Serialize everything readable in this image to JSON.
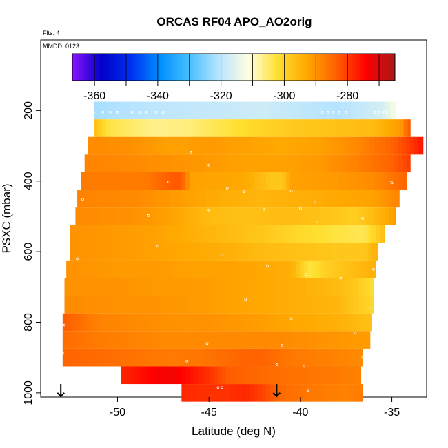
{
  "chart_data": {
    "type": "heatmap",
    "title": "ORCAS RF04 APO_AO2orig",
    "annotations": {
      "flights": "Flts: 4",
      "date": "MMDD: 0123"
    },
    "xlabel": "Latitude (deg N)",
    "ylabel": "PSXC (mbar)",
    "xlim": [
      -54.2,
      -33.1
    ],
    "ylim": [
      1012,
      0
    ],
    "x_ticks": [
      -50,
      -45,
      -40,
      -35
    ],
    "x_tick_labels": [
      "-50",
      "-45",
      "-40",
      "-35"
    ],
    "y_ticks": [
      200,
      400,
      600,
      800,
      1000
    ],
    "y_tick_labels": [
      "200",
      "400",
      "600",
      "800",
      "1000"
    ],
    "colorbar": {
      "range": [
        -367,
        -265
      ],
      "ticks": [
        -360,
        -340,
        -320,
        -300,
        -280
      ],
      "tick_labels": [
        "-360",
        "-340",
        "-320",
        "-300",
        "-280"
      ],
      "colors": [
        "#8a14ff",
        "#0000c8",
        "#0030f0",
        "#0090ff",
        "#48c0ff",
        "#b8e4ff",
        "#ffffe0",
        "#ffe030",
        "#ffa800",
        "#ff6000",
        "#ff0000",
        "#a81818"
      ]
    },
    "bands": [
      {
        "pressure": 200,
        "lat_min": -51.3,
        "lat_max": -34.8,
        "profile": [
          [
            -51.3,
            -322
          ],
          [
            -48,
            -320
          ],
          [
            -45,
            -319
          ],
          [
            -42,
            -318
          ],
          [
            -38,
            -321
          ],
          [
            -35.5,
            -317
          ],
          [
            -34.8,
            -312
          ]
        ]
      },
      {
        "pressure": 250,
        "lat_min": -51.3,
        "lat_max": -34.0,
        "profile": [
          [
            -51.3,
            -296
          ],
          [
            -50.5,
            -303
          ],
          [
            -48,
            -307
          ],
          [
            -46,
            -306
          ],
          [
            -44,
            -303
          ],
          [
            -42,
            -300
          ],
          [
            -40,
            -298
          ],
          [
            -38,
            -297
          ],
          [
            -36,
            -296
          ],
          [
            -34.5,
            -291
          ],
          [
            -34.0,
            -282
          ]
        ]
      },
      {
        "pressure": 300,
        "lat_min": -51.6,
        "lat_max": -33.3,
        "profile": [
          [
            -51.6,
            -289
          ],
          [
            -49,
            -290
          ],
          [
            -47,
            -292
          ],
          [
            -45,
            -291
          ],
          [
            -43,
            -292
          ],
          [
            -41,
            -293
          ],
          [
            -39,
            -292
          ],
          [
            -37,
            -289
          ],
          [
            -35,
            -284
          ],
          [
            -33.8,
            -279
          ],
          [
            -33.3,
            -276
          ]
        ]
      },
      {
        "pressure": 350,
        "lat_min": -51.8,
        "lat_max": -34.0,
        "profile": [
          [
            -51.8,
            -288
          ],
          [
            -49,
            -289
          ],
          [
            -47,
            -290
          ],
          [
            -45,
            -291
          ],
          [
            -43,
            -292
          ],
          [
            -41,
            -292
          ],
          [
            -39,
            -291
          ],
          [
            -37,
            -288
          ],
          [
            -35,
            -284
          ],
          [
            -34.0,
            -280
          ]
        ]
      },
      {
        "pressure": 400,
        "lat_min": -52.0,
        "lat_max": -34.2,
        "profile": [
          [
            -52.0,
            -287
          ],
          [
            -48.5,
            -287
          ],
          [
            -47,
            -283
          ],
          [
            -46.5,
            -283
          ],
          [
            -46,
            -292
          ],
          [
            -43,
            -293
          ],
          [
            -41.5,
            -298
          ],
          [
            -41,
            -298
          ],
          [
            -40.5,
            -292
          ],
          [
            -38,
            -291
          ],
          [
            -36,
            -289
          ],
          [
            -34.2,
            -284
          ]
        ]
      },
      {
        "pressure": 450,
        "lat_min": -52.2,
        "lat_max": -34.6,
        "profile": [
          [
            -52.2,
            -288
          ],
          [
            -49,
            -289
          ],
          [
            -46,
            -292
          ],
          [
            -44,
            -294
          ],
          [
            -42,
            -295
          ],
          [
            -40,
            -294
          ],
          [
            -38,
            -293
          ],
          [
            -36,
            -292
          ],
          [
            -34.6,
            -288
          ]
        ]
      },
      {
        "pressure": 500,
        "lat_min": -52.3,
        "lat_max": -34.8,
        "profile": [
          [
            -52.3,
            -289
          ],
          [
            -49,
            -290
          ],
          [
            -47,
            -292
          ],
          [
            -45,
            -296
          ],
          [
            -43,
            -297
          ],
          [
            -41,
            -296
          ],
          [
            -39,
            -297
          ],
          [
            -37,
            -299
          ],
          [
            -35.5,
            -294
          ],
          [
            -34.8,
            -291
          ]
        ]
      },
      {
        "pressure": 550,
        "lat_min": -52.6,
        "lat_max": -35.4,
        "profile": [
          [
            -52.6,
            -290
          ],
          [
            -50,
            -291
          ],
          [
            -48,
            -292
          ],
          [
            -46,
            -294
          ],
          [
            -44,
            -296
          ],
          [
            -42,
            -298
          ],
          [
            -40,
            -301
          ],
          [
            -38,
            -303
          ],
          [
            -36.5,
            -304
          ],
          [
            -35.4,
            -296
          ]
        ]
      },
      {
        "pressure": 600,
        "lat_min": -52.6,
        "lat_max": -35.8,
        "profile": [
          [
            -52.6,
            -290
          ],
          [
            -50,
            -291
          ],
          [
            -48,
            -292
          ],
          [
            -46,
            -293
          ],
          [
            -44,
            -294
          ],
          [
            -42,
            -296
          ],
          [
            -40,
            -297
          ],
          [
            -38,
            -298
          ],
          [
            -36.5,
            -298
          ],
          [
            -35.8,
            -294
          ]
        ]
      },
      {
        "pressure": 650,
        "lat_min": -52.8,
        "lat_max": -35.9,
        "profile": [
          [
            -52.8,
            -290
          ],
          [
            -50,
            -291
          ],
          [
            -48,
            -291
          ],
          [
            -46,
            -292
          ],
          [
            -44,
            -292
          ],
          [
            -42,
            -293
          ],
          [
            -40.5,
            -294
          ],
          [
            -39.5,
            -303
          ],
          [
            -38.5,
            -299
          ],
          [
            -37,
            -296
          ],
          [
            -35.9,
            -294
          ]
        ]
      },
      {
        "pressure": 700,
        "lat_min": -52.9,
        "lat_max": -36.0,
        "profile": [
          [
            -52.9,
            -290
          ],
          [
            -50,
            -290
          ],
          [
            -48,
            -291
          ],
          [
            -46,
            -291
          ],
          [
            -44,
            -292
          ],
          [
            -42,
            -293
          ],
          [
            -40,
            -294
          ],
          [
            -38,
            -296
          ],
          [
            -37,
            -298
          ],
          [
            -36.0,
            -302
          ]
        ]
      },
      {
        "pressure": 750,
        "lat_min": -52.9,
        "lat_max": -36.0,
        "profile": [
          [
            -52.9,
            -289
          ],
          [
            -50,
            -290
          ],
          [
            -48,
            -290
          ],
          [
            -46,
            -291
          ],
          [
            -44,
            -292
          ],
          [
            -42,
            -293
          ],
          [
            -40,
            -294
          ],
          [
            -38,
            -295
          ],
          [
            -37,
            -298
          ],
          [
            -36.0,
            -301
          ]
        ]
      },
      {
        "pressure": 800,
        "lat_min": -53.0,
        "lat_max": -36.1,
        "profile": [
          [
            -53.0,
            -283
          ],
          [
            -51,
            -288
          ],
          [
            -49,
            -289
          ],
          [
            -47,
            -290
          ],
          [
            -45,
            -290
          ],
          [
            -43,
            -291
          ],
          [
            -41.5,
            -292
          ],
          [
            -40,
            -293
          ],
          [
            -38,
            -294
          ],
          [
            -36.1,
            -297
          ]
        ]
      },
      {
        "pressure": 850,
        "lat_min": -53.0,
        "lat_max": -36.2,
        "profile": [
          [
            -53.0,
            -285
          ],
          [
            -51,
            -287
          ],
          [
            -49,
            -288
          ],
          [
            -47,
            -289
          ],
          [
            -45,
            -289
          ],
          [
            -43,
            -289
          ],
          [
            -41,
            -289
          ],
          [
            -39,
            -290
          ],
          [
            -37,
            -291
          ],
          [
            -36.2,
            -291
          ]
        ]
      },
      {
        "pressure": 900,
        "lat_min": -53.0,
        "lat_max": -36.6,
        "profile": [
          [
            -53.0,
            -284
          ],
          [
            -51,
            -285
          ],
          [
            -49,
            -286
          ],
          [
            -47,
            -287
          ],
          [
            -45,
            -286
          ],
          [
            -44,
            -285
          ],
          [
            -43,
            -284
          ],
          [
            -42,
            -284
          ],
          [
            -41,
            -286
          ],
          [
            -40,
            -287
          ],
          [
            -38,
            -288
          ],
          [
            -36.6,
            -289
          ]
        ]
      },
      {
        "pressure": 950,
        "lat_min": -49.8,
        "lat_max": -36.7,
        "profile": [
          [
            -49.8,
            -278
          ],
          [
            -48,
            -274
          ],
          [
            -47,
            -273
          ],
          [
            -46,
            -276
          ],
          [
            -45,
            -279
          ],
          [
            -44,
            -283
          ],
          [
            -42,
            -285
          ],
          [
            -40,
            -286
          ],
          [
            -38,
            -287
          ],
          [
            -36.7,
            -288
          ]
        ]
      },
      {
        "pressure": 1000,
        "lat_min": -46.5,
        "lat_max": -36.6,
        "profile": [
          [
            -46.5,
            -278
          ],
          [
            -45,
            -279
          ],
          [
            -44,
            -279
          ],
          [
            -43,
            -278
          ],
          [
            -42,
            -281
          ],
          [
            -41,
            -285
          ],
          [
            -39,
            -287
          ],
          [
            -37.5,
            -288
          ],
          [
            -36.6,
            -287
          ]
        ]
      }
    ],
    "flight_track": [
      [
        -51.3,
        205
      ],
      [
        -50.8,
        205
      ],
      [
        -50.4,
        205
      ],
      [
        -50.0,
        205
      ],
      [
        -49.2,
        205
      ],
      [
        -48.8,
        205
      ],
      [
        -48.4,
        205
      ],
      [
        -47.9,
        205
      ],
      [
        -47.5,
        205
      ],
      [
        -38.8,
        205
      ],
      [
        -38.5,
        205
      ],
      [
        -38.2,
        205
      ],
      [
        -37.9,
        205
      ],
      [
        -37.5,
        205
      ],
      [
        -35.9,
        205
      ],
      [
        -35.7,
        205
      ],
      [
        -35.5,
        205
      ],
      [
        -35.3,
        205
      ],
      [
        -46.0,
        318
      ],
      [
        -45.0,
        355
      ],
      [
        -47.2,
        403
      ],
      [
        -44.0,
        420
      ],
      [
        -43.1,
        430
      ],
      [
        -39.2,
        460
      ],
      [
        -35.1,
        403
      ],
      [
        -35.0,
        405
      ],
      [
        -40.5,
        428
      ],
      [
        -48.3,
        498
      ],
      [
        -45.0,
        482
      ],
      [
        -42.0,
        480
      ],
      [
        -40.0,
        478
      ],
      [
        -36.6,
        506
      ],
      [
        -51.9,
        452
      ],
      [
        -39.1,
        515
      ],
      [
        -35.0,
        560
      ],
      [
        -52.2,
        620
      ],
      [
        -47.8,
        585
      ],
      [
        -44.3,
        610
      ],
      [
        -41.8,
        640
      ],
      [
        -39.7,
        665
      ],
      [
        -37.8,
        675
      ],
      [
        -36.0,
        650
      ],
      [
        -43.0,
        735
      ],
      [
        -40.5,
        790
      ],
      [
        -36.2,
        760
      ],
      [
        -52.9,
        808
      ],
      [
        -45.1,
        860
      ],
      [
        -41.0,
        865
      ],
      [
        -37.0,
        830
      ],
      [
        -53.0,
        888
      ],
      [
        -46.2,
        910
      ],
      [
        -43.8,
        930
      ],
      [
        -41.3,
        920
      ],
      [
        -39.8,
        925
      ],
      [
        -36.6,
        900
      ],
      [
        -44.5,
        985
      ],
      [
        -44.3,
        985
      ],
      [
        -39.6,
        995
      ],
      [
        -36.3,
        990
      ],
      [
        -36.3,
        1000
      ]
    ],
    "arrows": [
      {
        "lat": -53.1
      },
      {
        "lat": -41.3
      }
    ]
  }
}
